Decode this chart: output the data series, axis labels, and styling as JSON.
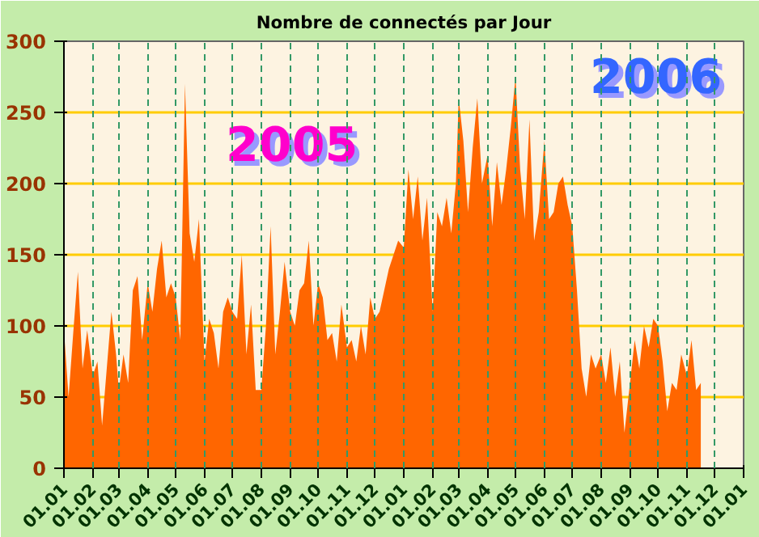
{
  "chart_data": {
    "type": "area",
    "title": "Nombre de connectés par Jour",
    "x": [
      "2005-01-01",
      "2005-01-06",
      "2005-01-11",
      "2005-01-16",
      "2005-01-21",
      "2005-01-26",
      "2005-02-01",
      "2005-02-06",
      "2005-02-11",
      "2005-02-16",
      "2005-02-21",
      "2005-02-26",
      "2005-03-01",
      "2005-03-06",
      "2005-03-11",
      "2005-03-16",
      "2005-03-21",
      "2005-03-26",
      "2005-04-01",
      "2005-04-06",
      "2005-04-11",
      "2005-04-16",
      "2005-04-21",
      "2005-04-26",
      "2005-05-01",
      "2005-05-06",
      "2005-05-11",
      "2005-05-16",
      "2005-05-21",
      "2005-05-26",
      "2005-06-01",
      "2005-06-06",
      "2005-06-11",
      "2005-06-16",
      "2005-06-21",
      "2005-06-26",
      "2005-07-01",
      "2005-07-06",
      "2005-07-11",
      "2005-07-16",
      "2005-07-21",
      "2005-07-26",
      "2005-08-01",
      "2005-08-06",
      "2005-08-11",
      "2005-08-16",
      "2005-08-21",
      "2005-08-26",
      "2005-09-01",
      "2005-09-06",
      "2005-09-11",
      "2005-09-16",
      "2005-09-21",
      "2005-09-26",
      "2005-10-01",
      "2005-10-06",
      "2005-10-11",
      "2005-10-16",
      "2005-10-21",
      "2005-10-26",
      "2005-11-01",
      "2005-11-06",
      "2005-11-11",
      "2005-11-16",
      "2005-11-21",
      "2005-11-26",
      "2005-12-01",
      "2005-12-06",
      "2005-12-11",
      "2005-12-16",
      "2005-12-21",
      "2005-12-26",
      "2006-01-01",
      "2006-01-06",
      "2006-01-11",
      "2006-01-16",
      "2006-01-21",
      "2006-01-26",
      "2006-02-01",
      "2006-02-06",
      "2006-02-11",
      "2006-02-16",
      "2006-02-21",
      "2006-02-26",
      "2006-03-01",
      "2006-03-06",
      "2006-03-11",
      "2006-03-16",
      "2006-03-21",
      "2006-03-26",
      "2006-04-01",
      "2006-04-06",
      "2006-04-11",
      "2006-04-16",
      "2006-04-21",
      "2006-04-26",
      "2006-05-01",
      "2006-05-06",
      "2006-05-11",
      "2006-05-16",
      "2006-05-21",
      "2006-05-26",
      "2006-06-01",
      "2006-06-06",
      "2006-06-11",
      "2006-06-16",
      "2006-06-21",
      "2006-06-26",
      "2006-07-01",
      "2006-07-06",
      "2006-07-11",
      "2006-07-16",
      "2006-07-21",
      "2006-07-26",
      "2006-08-01",
      "2006-08-06",
      "2006-08-11",
      "2006-08-16",
      "2006-08-21",
      "2006-08-26",
      "2006-09-01",
      "2006-09-06",
      "2006-09-11",
      "2006-09-16",
      "2006-09-21",
      "2006-09-26",
      "2006-10-01",
      "2006-10-06",
      "2006-10-11",
      "2006-10-16",
      "2006-10-21",
      "2006-10-26",
      "2006-11-01",
      "2006-11-06",
      "2006-11-11",
      "2006-11-16"
    ],
    "series": [
      {
        "color": "#ff6600",
        "values": [
          97,
          50,
          95,
          138,
          70,
          97,
          65,
          75,
          30,
          70,
          110,
          80,
          55,
          80,
          60,
          125,
          135,
          90,
          130,
          110,
          140,
          160,
          120,
          130,
          120,
          90,
          270,
          165,
          145,
          175,
          75,
          105,
          95,
          70,
          110,
          120,
          110,
          105,
          150,
          80,
          115,
          55,
          55,
          100,
          170,
          80,
          110,
          145,
          110,
          100,
          125,
          130,
          160,
          100,
          130,
          120,
          90,
          95,
          75,
          115,
          85,
          90,
          75,
          100,
          80,
          120,
          105,
          110,
          125,
          140,
          150,
          160,
          155,
          210,
          175,
          205,
          160,
          190,
          110,
          180,
          170,
          190,
          165,
          200,
          260,
          230,
          180,
          225,
          260,
          200,
          220,
          170,
          215,
          185,
          210,
          240,
          275,
          210,
          175,
          245,
          160,
          180,
          230,
          175,
          180,
          200,
          205,
          185,
          170,
          125,
          70,
          50,
          80,
          70,
          80,
          60,
          85,
          50,
          75,
          25,
          60,
          90,
          70,
          100,
          85,
          105,
          100,
          75,
          40,
          60,
          55,
          80,
          65,
          90,
          55,
          60
        ]
      }
    ],
    "xlim": [
      "2005-01-01",
      "2007-01-01"
    ],
    "xticks": [
      {
        "value": "2005-01-01",
        "label": "01.01"
      },
      {
        "value": "2005-02-01",
        "label": "01.02"
      },
      {
        "value": "2005-03-01",
        "label": "01.03"
      },
      {
        "value": "2005-04-01",
        "label": "01.04"
      },
      {
        "value": "2005-05-01",
        "label": "01.05"
      },
      {
        "value": "2005-06-01",
        "label": "01.06"
      },
      {
        "value": "2005-07-01",
        "label": "01.07"
      },
      {
        "value": "2005-08-01",
        "label": "01.08"
      },
      {
        "value": "2005-09-01",
        "label": "01.09"
      },
      {
        "value": "2005-10-01",
        "label": "01.10"
      },
      {
        "value": "2005-11-01",
        "label": "01.11"
      },
      {
        "value": "2005-12-01",
        "label": "01.12"
      },
      {
        "value": "2006-01-01",
        "label": "01.01"
      },
      {
        "value": "2006-02-01",
        "label": "01.02"
      },
      {
        "value": "2006-03-01",
        "label": "01.03"
      },
      {
        "value": "2006-04-01",
        "label": "01.04"
      },
      {
        "value": "2006-05-01",
        "label": "01.05"
      },
      {
        "value": "2006-06-01",
        "label": "01.06"
      },
      {
        "value": "2006-07-01",
        "label": "01.07"
      },
      {
        "value": "2006-08-01",
        "label": "01.08"
      },
      {
        "value": "2006-09-01",
        "label": "01.09"
      },
      {
        "value": "2006-10-01",
        "label": "01.10"
      },
      {
        "value": "2006-11-01",
        "label": "01.11"
      },
      {
        "value": "2006-12-01",
        "label": "01.12"
      },
      {
        "value": "2007-01-01",
        "label": "01.01"
      }
    ],
    "ylim": [
      0,
      300
    ],
    "yticks": [
      0,
      50,
      100,
      150,
      200,
      250,
      300
    ],
    "grid": true,
    "annotations": [
      "2005",
      "2006"
    ]
  }
}
